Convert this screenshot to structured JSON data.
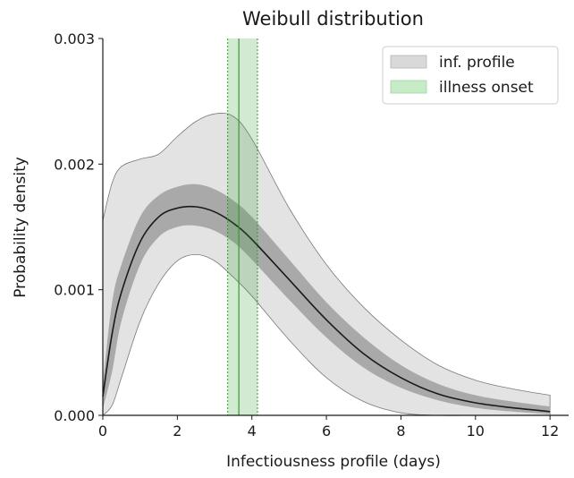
{
  "chart_data": {
    "type": "area",
    "title": "Weibull distribution",
    "xlabel": "Infectiousness profile (days)",
    "ylabel": "Probability density",
    "xlim": [
      0,
      12.5
    ],
    "ylim": [
      0,
      0.003
    ],
    "xticks": [
      0,
      2,
      4,
      6,
      8,
      10,
      12
    ],
    "yticks": [
      0.0,
      0.001,
      0.002,
      0.003
    ],
    "ytick_labels": [
      "0.000",
      "0.001",
      "0.002",
      "0.003"
    ],
    "grid": false,
    "legend_position": "top-right",
    "legend": [
      {
        "label": "inf. profile",
        "color": "#d9d9d9"
      },
      {
        "label": "illness onset",
        "color": "#c6ebc6"
      }
    ],
    "x": [
      0,
      0.25,
      0.5,
      1,
      1.5,
      2,
      2.5,
      3,
      3.5,
      4,
      5,
      6,
      7,
      8,
      9,
      10,
      11,
      12
    ],
    "series": [
      {
        "name": "inf. profile",
        "role": "median",
        "color": "#1a1a1a",
        "values": [
          0.00015,
          0.00065,
          0.00098,
          0.00138,
          0.00158,
          0.00165,
          0.00166,
          0.00162,
          0.00153,
          0.0014,
          0.00108,
          0.00076,
          0.00049,
          0.0003,
          0.00017,
          0.0001,
          6e-05,
          3e-05
        ]
      },
      {
        "role": "band-50-lower",
        "values": [
          5e-05,
          0.00035,
          0.00075,
          0.0012,
          0.00142,
          0.0015,
          0.00151,
          0.00147,
          0.00138,
          0.00124,
          0.00092,
          0.00062,
          0.00038,
          0.00022,
          0.00012,
          6e-05,
          3e-05,
          1e-05
        ]
      },
      {
        "role": "band-50-upper",
        "values": [
          0.00025,
          0.0009,
          0.0012,
          0.00158,
          0.00175,
          0.00182,
          0.00184,
          0.0018,
          0.00171,
          0.00158,
          0.00124,
          0.0009,
          0.00062,
          0.0004,
          0.00025,
          0.00016,
          0.00011,
          7e-05
        ]
      },
      {
        "role": "band-95-lower",
        "values": [
          0.0,
          8e-05,
          0.0003,
          0.00075,
          0.00105,
          0.00123,
          0.00128,
          0.00123,
          0.0011,
          0.00095,
          0.0006,
          0.0003,
          0.00011,
          2e-05,
          0.0,
          0.0,
          0.0,
          0.0
        ]
      },
      {
        "role": "band-95-upper",
        "values": [
          0.00155,
          0.00185,
          0.00198,
          0.00204,
          0.00208,
          0.00222,
          0.00234,
          0.0024,
          0.00238,
          0.0022,
          0.00165,
          0.0012,
          0.00086,
          0.0006,
          0.0004,
          0.00028,
          0.00021,
          0.00016
        ]
      }
    ],
    "onset": {
      "line": 3.65,
      "band": [
        3.35,
        4.15
      ],
      "color": "#2ca02c"
    }
  }
}
